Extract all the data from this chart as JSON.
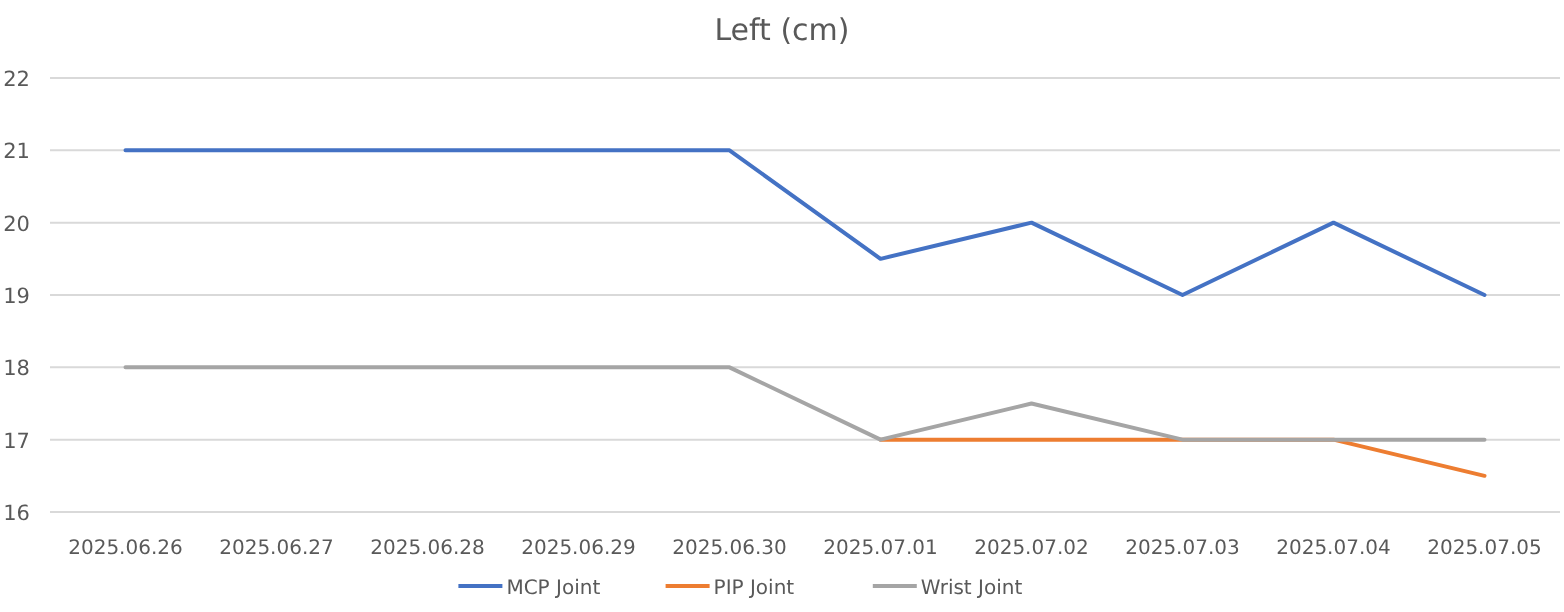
{
  "chart_data": {
    "type": "line",
    "title": "Left (cm)",
    "categories": [
      "2025.06.26",
      "2025.06.27",
      "2025.06.28",
      "2025.06.29",
      "2025.06.30",
      "2025.07.01",
      "2025.07.02",
      "2025.07.03",
      "2025.07.04",
      "2025.07.05"
    ],
    "series": [
      {
        "name": "MCP Joint",
        "color": "#4472c4",
        "values": [
          21,
          21,
          21,
          21,
          21,
          19.5,
          20,
          19,
          20,
          19
        ]
      },
      {
        "name": "PIP Joint",
        "color": "#ed7d31",
        "values": [
          null,
          null,
          null,
          null,
          null,
          17,
          17,
          17,
          17,
          16.5
        ]
      },
      {
        "name": "Wrist Joint",
        "color": "#a5a5a5",
        "values": [
          18,
          18,
          18,
          18,
          18,
          17,
          17.5,
          17,
          17,
          17
        ]
      }
    ],
    "ylim": [
      16,
      22
    ],
    "yticks": [
      16,
      17,
      18,
      19,
      20,
      21,
      22
    ],
    "grid": "y",
    "legend": "bottom",
    "marker": "none",
    "line_style": "solid"
  }
}
